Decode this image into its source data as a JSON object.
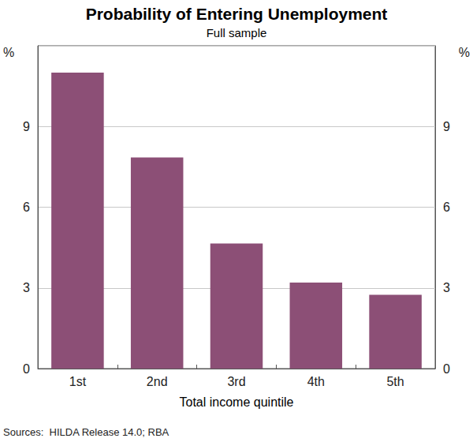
{
  "chart_data": {
    "type": "bar",
    "title": "Probability of Entering Unemployment",
    "subtitle": "Full sample",
    "x_label": "Total income quintile",
    "y_label": "%",
    "source": "Sources:  HILDA Release 14.0; RBA",
    "categories": [
      "1st",
      "2nd",
      "3rd",
      "4th",
      "5th"
    ],
    "values": [
      11.0,
      7.85,
      4.65,
      3.2,
      2.74
    ],
    "color": "#8c4f76",
    "ylim": [
      0,
      12
    ],
    "yticks": [
      0,
      3,
      6,
      9
    ],
    "grid": true
  }
}
